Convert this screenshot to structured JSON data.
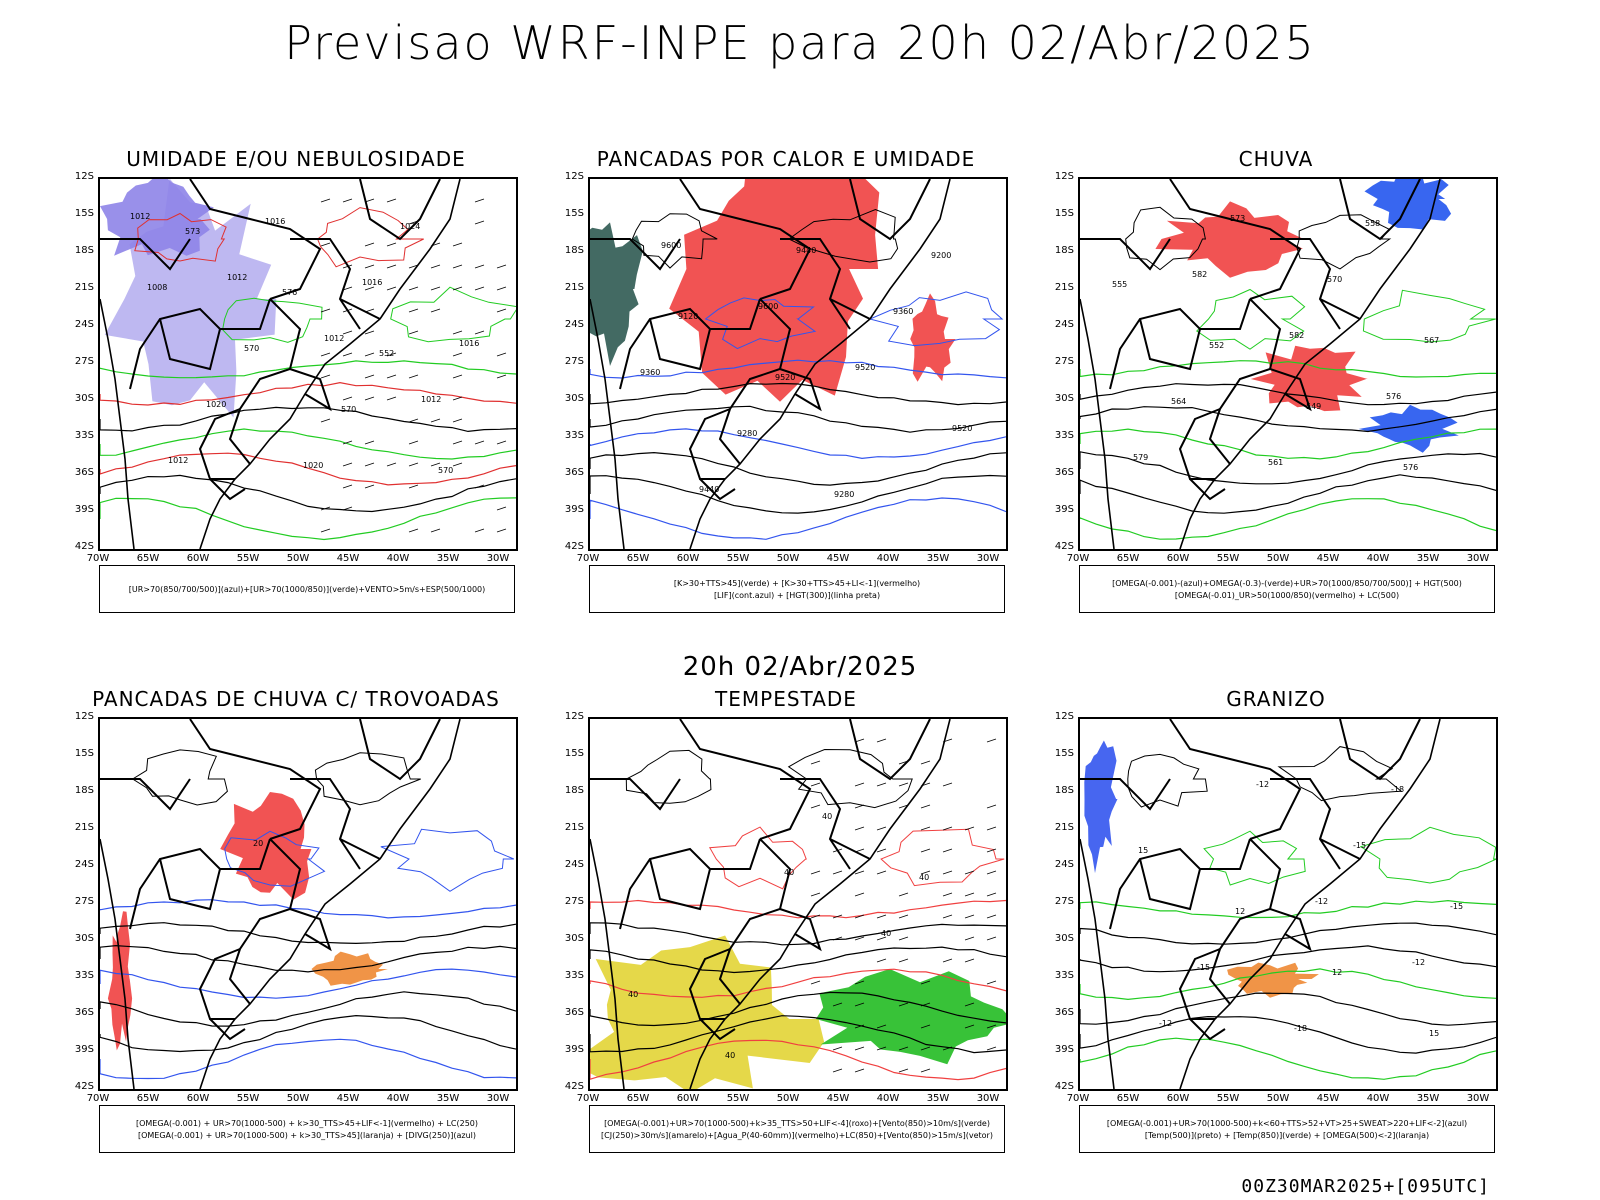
{
  "main_title": "Previsao WRF-INPE  para 20h 02/Abr/2025",
  "mid_title": "20h 02/Abr/2025",
  "stamp": "00Z30MAR2025+[095UTC]",
  "lat_labels": [
    "12S",
    "15S",
    "18S",
    "21S",
    "24S",
    "27S",
    "30S",
    "33S",
    "36S",
    "39S",
    "42S"
  ],
  "lon_labels": [
    "70W",
    "65W",
    "60W",
    "55W",
    "50W",
    "45W",
    "40W",
    "35W",
    "30W"
  ],
  "panels": [
    {
      "title": "UMIDADE E/OU NEBULOSIDADE",
      "legend_lines": [
        "[UR>70(850/700/500)](azul)+[UR>70(1000/850)](verde)+VENTO>5m/s+ESP(500/1000)"
      ],
      "map_labels": [
        "1012",
        "1012",
        "1012",
        "1012",
        "1012",
        "1016",
        "1016",
        "1016",
        "1020",
        "1020",
        "1024",
        "1008",
        "570",
        "570",
        "570",
        "573",
        "576",
        "552"
      ],
      "colors": {
        "fill": "#b7b0f0",
        "fill2": "#8e84e8",
        "line1": "#22cc22",
        "line2": "#e03030",
        "line3": "#000000"
      }
    },
    {
      "title": "PANCADAS POR CALOR E UMIDADE",
      "legend_lines": [
        "[K>30+TTS>45](verde) + [K>30+TTS>45+LI<-1](vermelho)",
        "[LIF](cont.azul) + [HGT(300)](linha preta)"
      ],
      "map_labels": [
        "9600",
        "9600",
        "9520",
        "9520",
        "9440",
        "9440",
        "9360",
        "9360",
        "9280",
        "9280",
        "9200",
        "9120",
        "9520"
      ],
      "colors": {
        "fill": "#f04040",
        "fill2": "#2f5a52",
        "line1": "#3355ee",
        "line2": "#000000",
        "line3": "#000000"
      }
    },
    {
      "title": "CHUVA",
      "legend_lines": [
        "[OMEGA(-0.001)-(azul)+OMEGA(-0.3)-(verde)+UR>70(1000/850/700/500)] + HGT(500)",
        "[OMEGA(-0.01)_UR>50(1000/850)(vermelho) + LC(500)"
      ],
      "map_labels": [
        "582",
        "582",
        "576",
        "579",
        "573",
        "570",
        "567",
        "564",
        "561",
        "558",
        "555",
        "552",
        "549",
        "576"
      ],
      "colors": {
        "fill": "#f04040",
        "fill2": "#2255ee",
        "line1": "#22cc22",
        "line2": "#000000",
        "line3": "#000000"
      }
    },
    {
      "title": "PANCADAS DE CHUVA C/ TROVOADAS",
      "legend_lines": [
        "[OMEGA(-0.001) + UR>70(1000-500) + k>30_TTS>45+LIF<-1](vermelho) + LC(250)",
        "[OMEGA(-0.001) + UR>70(1000-500) + k>30_TTS>45](laranja) + [DIVG(250)](azul)"
      ],
      "map_labels": [
        "20"
      ],
      "colors": {
        "fill": "#f04040",
        "fill2": "#ee8833",
        "line1": "#3355ee",
        "line2": "#000000",
        "line3": "#000000"
      }
    },
    {
      "title": "TEMPESTADE",
      "legend_lines": [
        "[OMEGA(-0.001)+UR>70(1000-500)+k>35_TTS>50+LIF<-4](roxo)+[Vento(850)>10m/s](verde)",
        "[CJ(250)>30m/s](amarelo)+[Agua_P(40-60mm)](vermelho)+LC(850)+[Vento(850)>15m/s](vetor)"
      ],
      "map_labels": [
        "40",
        "40",
        "40",
        "40",
        "40",
        "40"
      ],
      "colors": {
        "fill": "#e2d435",
        "fill2": "#22bb22",
        "line1": "#f04040",
        "line2": "#000000",
        "line3": "#000000"
      }
    },
    {
      "title": "GRANIZO",
      "legend_lines": [
        "[OMEGA(-0.001)+UR>70(1000-500)+k<60+TTS>52+VT>25+SWEAT>220+LIF<-2](azul)",
        "[Temp(500)](preto) + [Temp(850)](verde) + [OMEGA(500)<-2](laranja)"
      ],
      "map_labels": [
        "-12",
        "-12",
        "-12",
        "-12",
        "-15",
        "-15",
        "-15",
        "-18",
        "-18",
        "15",
        "12",
        "12",
        "15"
      ],
      "colors": {
        "fill": "#ee8833",
        "fill2": "#3355ee",
        "line1": "#22cc22",
        "line2": "#000000",
        "line3": "#000000"
      }
    }
  ]
}
